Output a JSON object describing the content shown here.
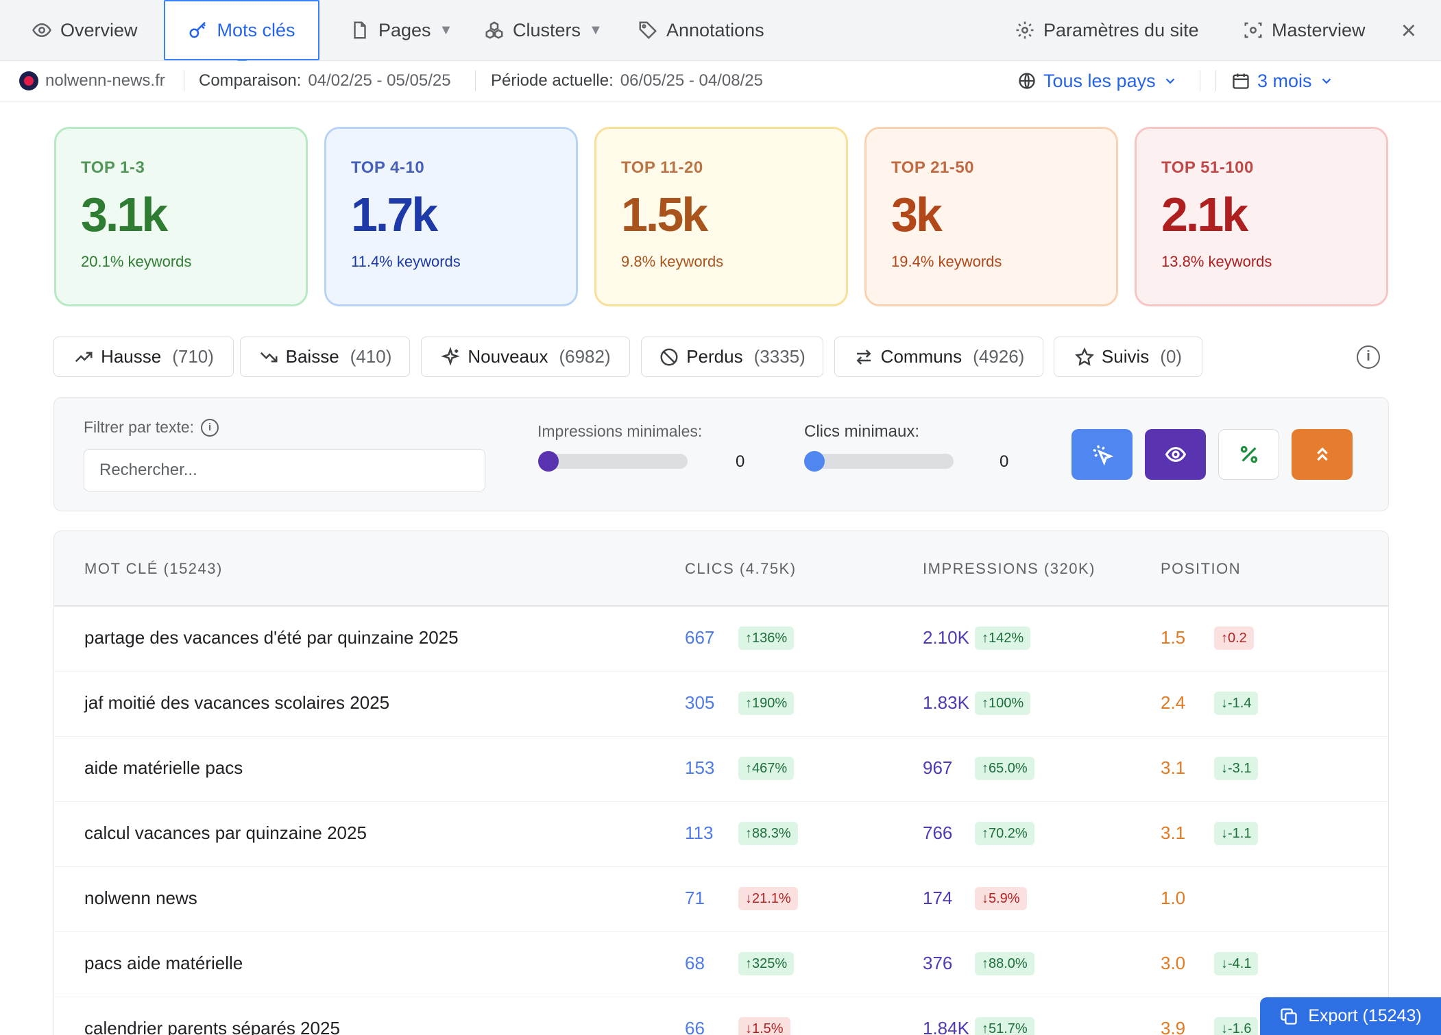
{
  "nav": {
    "tabs": [
      {
        "label": "Overview",
        "icon": "eye-icon"
      },
      {
        "label": "Mots clés",
        "icon": "key-icon",
        "active": true
      },
      {
        "label": "Pages",
        "icon": "file-icon",
        "dropdown": true
      },
      {
        "label": "Clusters",
        "icon": "cluster-icon",
        "dropdown": true
      },
      {
        "label": "Annotations",
        "icon": "tag-icon"
      }
    ],
    "site_settings": "Paramètres du site",
    "masterview": "Masterview"
  },
  "subbar": {
    "site": "nolwenn-news.fr",
    "comparison_label": "Comparaison:",
    "comparison_range": "04/02/25 - 05/05/25",
    "current_label": "Période actuelle:",
    "current_range": "06/05/25 - 04/08/25",
    "country": "Tous les pays",
    "period": "3 mois"
  },
  "cards": [
    {
      "label": "TOP 1-3",
      "value": "3.1k",
      "share": "20.1% keywords",
      "color": "#2e7d32",
      "border": "#b8e8c4",
      "bg": "#effbf2"
    },
    {
      "label": "TOP 4-10",
      "value": "1.7k",
      "share": "11.4% keywords",
      "color": "#1e3aa8",
      "border": "#b9d3f5",
      "bg": "#eef5fd"
    },
    {
      "label": "TOP 11-20",
      "value": "1.5k",
      "share": "9.8% keywords",
      "color": "#a8541c",
      "border": "#f7e09a",
      "bg": "#fffbea"
    },
    {
      "label": "TOP 21-50",
      "value": "3k",
      "share": "19.4% keywords",
      "color": "#b2471a",
      "border": "#f9d2b2",
      "bg": "#fff5ec"
    },
    {
      "label": "TOP 51-100",
      "value": "2.1k",
      "share": "13.8% keywords",
      "color": "#b01f1f",
      "border": "#f6c5c5",
      "bg": "#fdf0f0"
    }
  ],
  "filters": [
    {
      "label": "Hausse",
      "count": "(710)",
      "icon": "trending-up-icon"
    },
    {
      "label": "Baisse",
      "count": "(410)",
      "icon": "trending-down-icon"
    },
    {
      "label": "Nouveaux",
      "count": "(6982)",
      "icon": "sparkles-icon"
    },
    {
      "label": "Perdus",
      "count": "(3335)",
      "icon": "ban-icon"
    },
    {
      "label": "Communs",
      "count": "(4926)",
      "icon": "arrows-swap-icon"
    },
    {
      "label": "Suivis",
      "count": "(0)",
      "icon": "star-icon"
    }
  ],
  "panel": {
    "text_filter_label": "Filtrer par texte:",
    "search_placeholder": "Rechercher...",
    "impressions_label": "Impressions minimales:",
    "impressions_value": "0",
    "clicks_label": "Clics minimaux:",
    "clicks_value": "0",
    "buttons": [
      {
        "icon": "cursor-click-icon",
        "bg": "#4f86f0",
        "fg": "#ffffff"
      },
      {
        "icon": "eye-icon",
        "bg": "#5a33b0",
        "fg": "#ffffff"
      },
      {
        "icon": "percent-icon",
        "bg": "#ffffff",
        "fg": "#1e8e3e"
      },
      {
        "icon": "chevrons-up-icon",
        "bg": "#e67d2e",
        "fg": "#ffffff"
      }
    ]
  },
  "table": {
    "headers": {
      "keyword": "MOT CLÉ (15243)",
      "clicks": "CLICS (4.75K)",
      "impressions": "IMPRESSIONS (320K)",
      "position": "POSITION"
    },
    "rows": [
      {
        "keyword": "partage des vacances d'été par quinzaine 2025",
        "clicks": "667",
        "clicks_delta": "↑136%",
        "clicks_dir": "up",
        "impr": "2.10K",
        "impr_delta": "↑142%",
        "impr_dir": "up",
        "pos": "1.5",
        "pos_delta": "↑0.2",
        "pos_dir": "down"
      },
      {
        "keyword": "jaf moitié des vacances scolaires 2025",
        "clicks": "305",
        "clicks_delta": "↑190%",
        "clicks_dir": "up",
        "impr": "1.83K",
        "impr_delta": "↑100%",
        "impr_dir": "up",
        "pos": "2.4",
        "pos_delta": "↓-1.4",
        "pos_dir": "up"
      },
      {
        "keyword": "aide matérielle pacs",
        "clicks": "153",
        "clicks_delta": "↑467%",
        "clicks_dir": "up",
        "impr": "967",
        "impr_delta": "↑65.0%",
        "impr_dir": "up",
        "pos": "3.1",
        "pos_delta": "↓-3.1",
        "pos_dir": "up"
      },
      {
        "keyword": "calcul vacances par quinzaine 2025",
        "clicks": "113",
        "clicks_delta": "↑88.3%",
        "clicks_dir": "up",
        "impr": "766",
        "impr_delta": "↑70.2%",
        "impr_dir": "up",
        "pos": "3.1",
        "pos_delta": "↓-1.1",
        "pos_dir": "up"
      },
      {
        "keyword": "nolwenn news",
        "clicks": "71",
        "clicks_delta": "↓21.1%",
        "clicks_dir": "down",
        "impr": "174",
        "impr_delta": "↓5.9%",
        "impr_dir": "down",
        "pos": "1.0",
        "pos_delta": "",
        "pos_dir": ""
      },
      {
        "keyword": "pacs aide matérielle",
        "clicks": "68",
        "clicks_delta": "↑325%",
        "clicks_dir": "up",
        "impr": "376",
        "impr_delta": "↑88.0%",
        "impr_dir": "up",
        "pos": "3.0",
        "pos_delta": "↓-4.1",
        "pos_dir": "up"
      },
      {
        "keyword": "calendrier parents séparés 2025",
        "clicks": "66",
        "clicks_delta": "↓1.5%",
        "clicks_dir": "down",
        "impr": "1.84K",
        "impr_delta": "↑51.7%",
        "impr_dir": "up",
        "pos": "3.9",
        "pos_delta": "↓-1.6",
        "pos_dir": "up"
      }
    ]
  },
  "export_label": "Export (15243)"
}
